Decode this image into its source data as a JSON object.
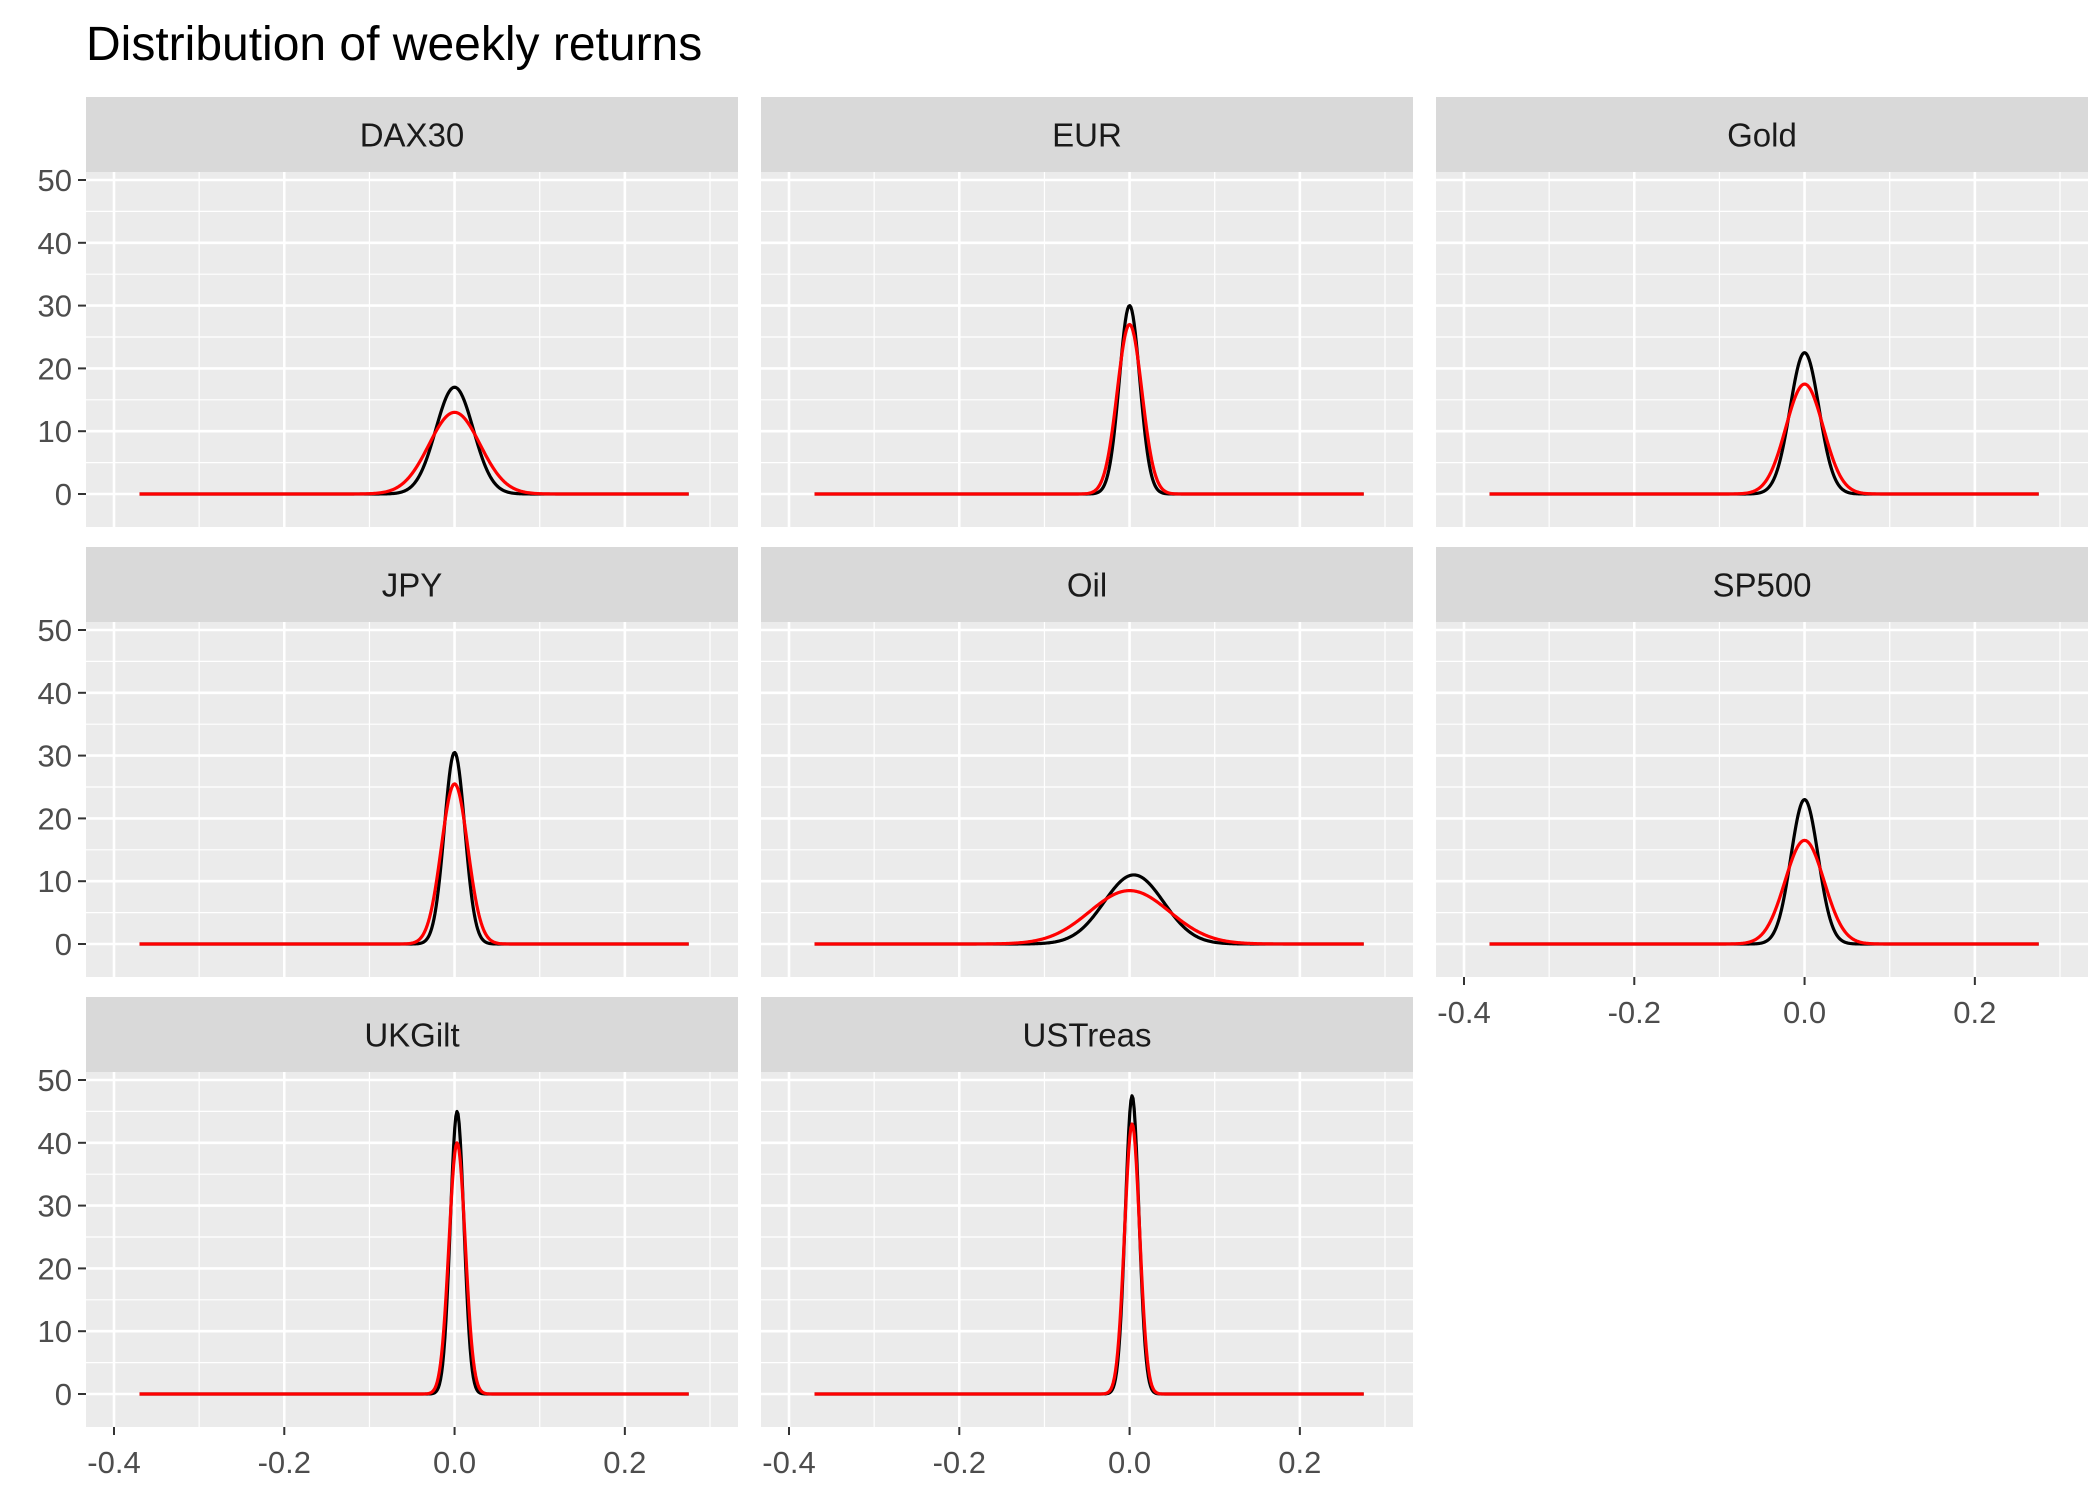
{
  "chart_data": {
    "type": "line",
    "title": "Distribution of weekly returns",
    "xlim": [
      -0.4,
      0.3
    ],
    "ylim": [
      0,
      50
    ],
    "x_ticks": [
      "-0.4",
      "-0.2",
      "0.0",
      "0.2"
    ],
    "y_ticks": [
      "0",
      "10",
      "20",
      "30",
      "40",
      "50"
    ],
    "series_styles": {
      "density": "#000000",
      "normal": "#ff0000"
    },
    "panels": [
      {
        "name": "DAX30",
        "x_axis_labels": false,
        "y_axis_labels": true,
        "x_range": [
          -0.37,
          0.275
        ],
        "density": {
          "peak": 17,
          "sd": 0.022,
          "center": 0.0
        },
        "normal": {
          "peak": 13,
          "sd": 0.03,
          "center": 0.0
        }
      },
      {
        "name": "EUR",
        "x_axis_labels": false,
        "y_axis_labels": false,
        "x_range": [
          -0.37,
          0.275
        ],
        "density": {
          "peak": 30,
          "sd": 0.012,
          "center": 0.0
        },
        "normal": {
          "peak": 27,
          "sd": 0.0145,
          "center": 0.0
        }
      },
      {
        "name": "Gold",
        "x_axis_labels": false,
        "y_axis_labels": false,
        "x_range": [
          -0.37,
          0.275
        ],
        "density": {
          "peak": 22.5,
          "sd": 0.017,
          "center": 0.0
        },
        "normal": {
          "peak": 17.5,
          "sd": 0.022,
          "center": 0.0
        }
      },
      {
        "name": "JPY",
        "x_axis_labels": false,
        "y_axis_labels": true,
        "x_range": [
          -0.37,
          0.275
        ],
        "density": {
          "peak": 30.5,
          "sd": 0.012,
          "center": 0.0
        },
        "normal": {
          "peak": 25.5,
          "sd": 0.0155,
          "center": 0.0
        }
      },
      {
        "name": "Oil",
        "x_axis_labels": false,
        "y_axis_labels": false,
        "x_range": [
          -0.37,
          0.275
        ],
        "density": {
          "peak": 11,
          "sd": 0.035,
          "center": 0.005
        },
        "normal": {
          "peak": 8.5,
          "sd": 0.047,
          "center": 0.0
        }
      },
      {
        "name": "SP500",
        "x_axis_labels": true,
        "y_axis_labels": false,
        "x_range": [
          -0.37,
          0.275
        ],
        "density": {
          "peak": 23,
          "sd": 0.016,
          "center": 0.0
        },
        "normal": {
          "peak": 16.5,
          "sd": 0.023,
          "center": 0.0
        }
      },
      {
        "name": "UKGilt",
        "x_axis_labels": true,
        "y_axis_labels": true,
        "x_range": [
          -0.37,
          0.275
        ],
        "density": {
          "peak": 45,
          "sd": 0.008,
          "center": 0.003
        },
        "normal": {
          "peak": 40,
          "sd": 0.0095,
          "center": 0.003
        }
      },
      {
        "name": "USTreas",
        "x_axis_labels": true,
        "y_axis_labels": false,
        "x_range": [
          -0.37,
          0.275
        ],
        "density": {
          "peak": 47.5,
          "sd": 0.008,
          "center": 0.003
        },
        "normal": {
          "peak": 43,
          "sd": 0.0088,
          "center": 0.003
        }
      }
    ]
  }
}
